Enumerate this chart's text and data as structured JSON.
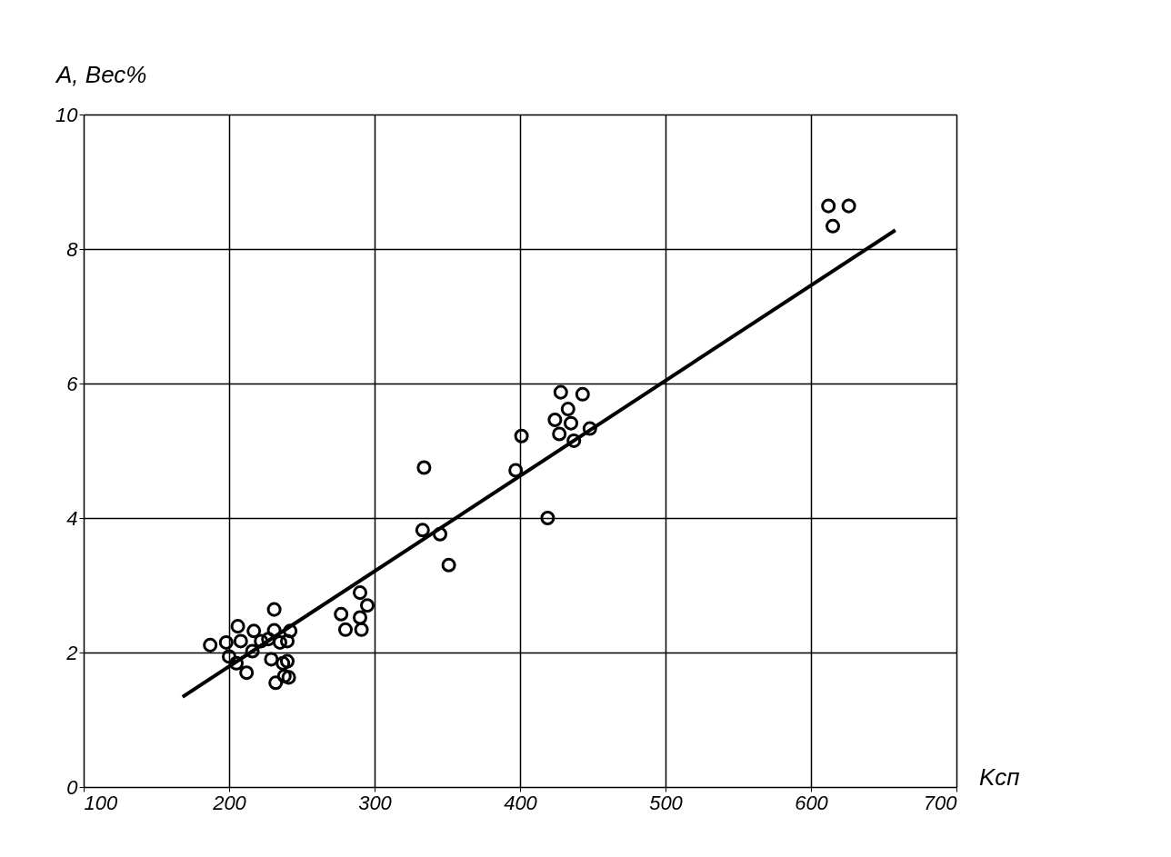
{
  "chart_data": {
    "type": "scatter",
    "xlabel": "Kсп",
    "ylabel": "A, Вес%",
    "xlim": [
      100,
      700
    ],
    "ylim": [
      0,
      10
    ],
    "xticks": [
      100,
      200,
      300,
      400,
      500,
      600,
      700
    ],
    "yticks": [
      0,
      2,
      4,
      6,
      8,
      10
    ],
    "grid": true,
    "series": [
      {
        "color": "#000000",
        "marker": "circle",
        "x": [
          187,
          198,
          200,
          206,
          208,
          205,
          212,
          217,
          216,
          222,
          227,
          231,
          231,
          229,
          232,
          235,
          237,
          238,
          240,
          240,
          241,
          242,
          277,
          280,
          290,
          290,
          291,
          295,
          334,
          333,
          345,
          351,
          397,
          401,
          419,
          424,
          428,
          433,
          435,
          427,
          437,
          443,
          448,
          612,
          626,
          615
        ],
        "values": [
          2.11,
          2.15,
          1.94,
          2.39,
          2.17,
          1.84,
          1.7,
          2.32,
          2.02,
          2.17,
          2.2,
          2.64,
          2.33,
          1.9,
          1.55,
          2.15,
          1.84,
          1.65,
          2.17,
          1.87,
          1.63,
          2.32,
          2.57,
          2.34,
          2.89,
          2.52,
          2.34,
          2.7,
          4.75,
          3.82,
          3.76,
          3.3,
          4.71,
          5.22,
          4.0,
          5.46,
          5.87,
          5.62,
          5.41,
          5.25,
          5.15,
          5.84,
          5.33,
          8.64,
          8.64,
          8.34
        ]
      },
      {
        "type": "line",
        "color": "#000000",
        "line_style": "solid",
        "marker": "none",
        "x": [
          168,
          658
        ],
        "values": [
          1.34,
          8.28
        ]
      }
    ]
  }
}
